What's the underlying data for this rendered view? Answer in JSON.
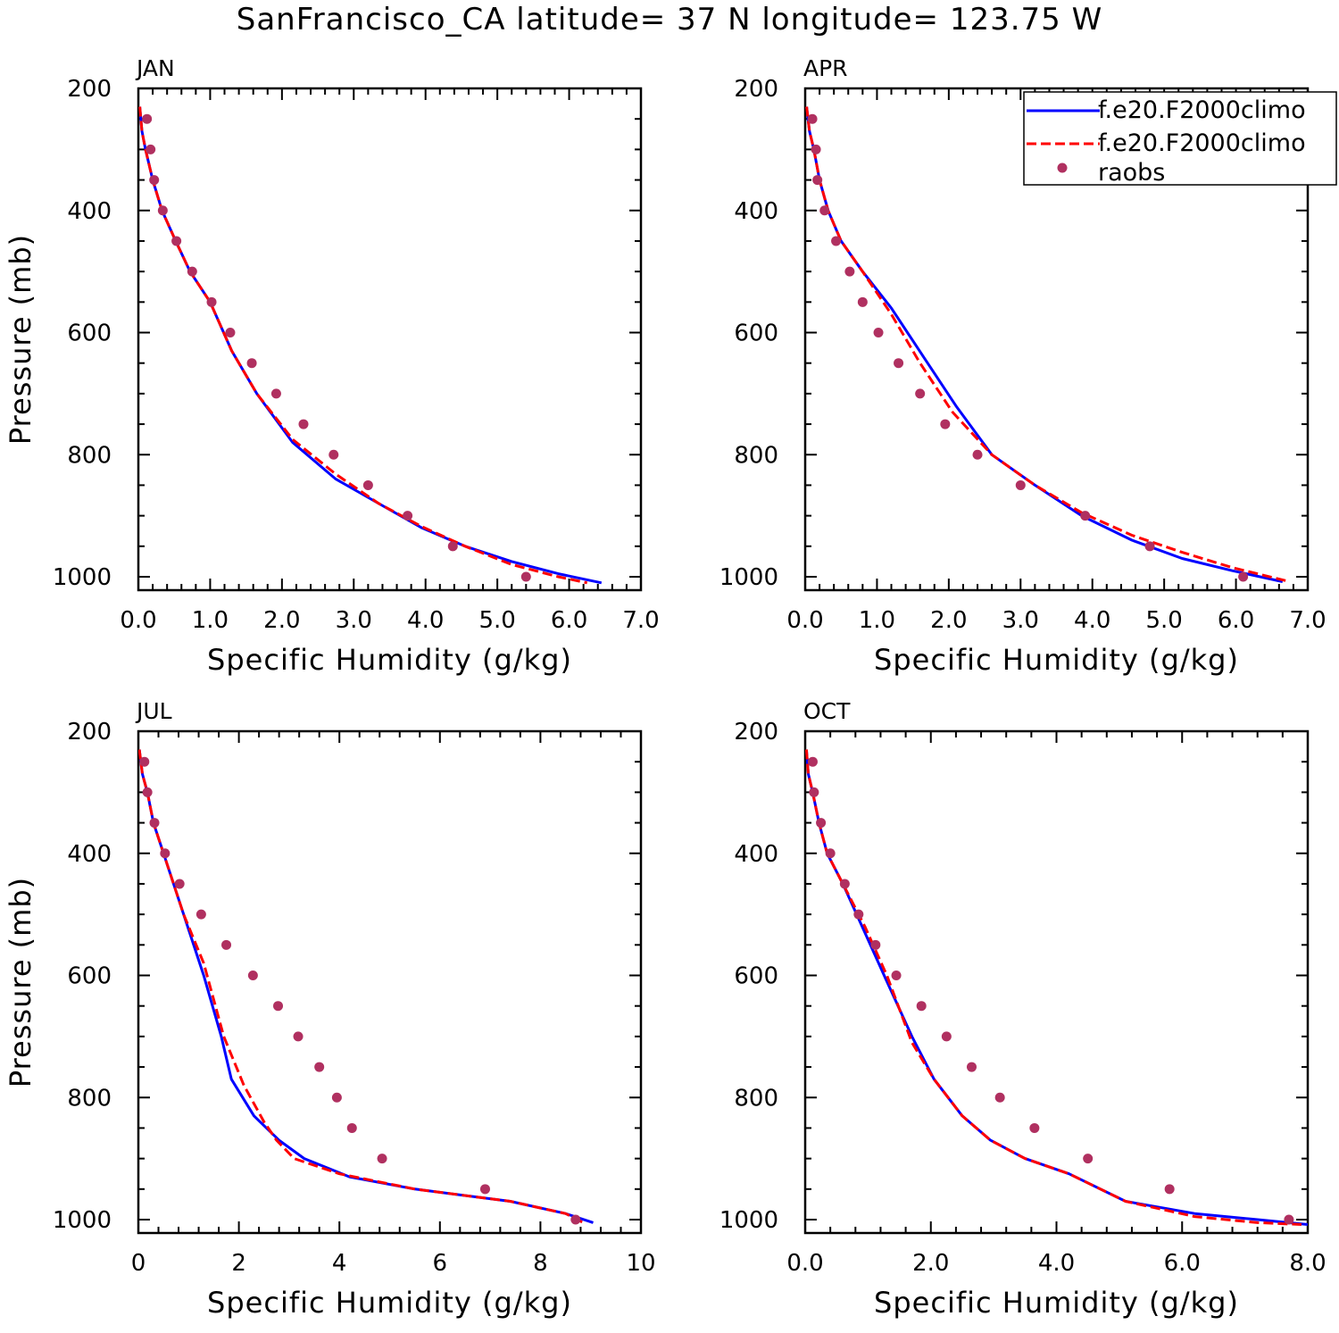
{
  "title": "SanFrancisco_CA  latitude= 37 N longitude= 123.75 W",
  "legend": {
    "placement": "top-right of APR panel",
    "entries": [
      {
        "label": "f.e20.F2000climo",
        "style": "solid",
        "color": "#0000ff"
      },
      {
        "label": "f.e20.F2000climo",
        "style": "dashed",
        "color": "#ff0000"
      },
      {
        "label": "raobs",
        "style": "marker",
        "color": "#b03060"
      }
    ]
  },
  "colors": {
    "model_solid": "#0000ff",
    "model_dashed": "#ff0000",
    "obs": "#b03060"
  },
  "chart_data": [
    {
      "type": "line",
      "panel_label": "JAN",
      "xlabel": "Specific Humidity (g/kg)",
      "ylabel": "Pressure (mb)",
      "xlim": [
        0,
        7
      ],
      "ylim": [
        1000,
        200
      ],
      "y_reversed": true,
      "xticks": [
        "0.0",
        "1.0",
        "2.0",
        "3.0",
        "4.0",
        "5.0",
        "6.0",
        "7.0"
      ],
      "yticks": [
        "200",
        "400",
        "600",
        "800",
        "1000"
      ],
      "series": [
        {
          "style": "solid",
          "color": "#0000ff",
          "x": [
            0.02,
            0.05,
            0.1,
            0.2,
            0.33,
            0.52,
            0.72,
            1.0,
            1.3,
            1.65,
            2.15,
            2.75,
            3.35,
            3.95,
            4.55,
            5.2,
            5.85,
            6.45
          ],
          "y": [
            230,
            270,
            300,
            350,
            400,
            450,
            500,
            550,
            630,
            700,
            780,
            840,
            880,
            920,
            950,
            975,
            995,
            1010
          ]
        },
        {
          "style": "dashed",
          "color": "#ff0000",
          "x": [
            0.02,
            0.05,
            0.1,
            0.2,
            0.33,
            0.52,
            0.72,
            1.0,
            1.3,
            1.65,
            2.15,
            2.75,
            3.35,
            3.95,
            4.55,
            5.2,
            5.85,
            6.25
          ],
          "y": [
            230,
            270,
            300,
            350,
            400,
            450,
            500,
            550,
            630,
            700,
            775,
            832,
            880,
            918,
            950,
            980,
            1000,
            1010
          ]
        },
        {
          "style": "marker",
          "color": "#b03060",
          "x": [
            0.12,
            0.17,
            0.22,
            0.34,
            0.53,
            0.75,
            1.02,
            1.28,
            1.58,
            1.92,
            2.3,
            2.72,
            3.2,
            3.75,
            4.38,
            5.4
          ],
          "y": [
            250,
            300,
            350,
            400,
            450,
            500,
            550,
            600,
            650,
            700,
            750,
            800,
            850,
            900,
            950,
            1000
          ]
        }
      ]
    },
    {
      "type": "line",
      "panel_label": "APR",
      "xlabel": "Specific Humidity (g/kg)",
      "ylabel": "",
      "xlim": [
        0,
        7
      ],
      "ylim": [
        1000,
        200
      ],
      "y_reversed": true,
      "xticks": [
        "0.0",
        "1.0",
        "2.0",
        "3.0",
        "4.0",
        "5.0",
        "6.0",
        "7.0"
      ],
      "yticks": [
        "200",
        "400",
        "600",
        "800",
        "1000"
      ],
      "series": [
        {
          "style": "solid",
          "color": "#0000ff",
          "x": [
            0.02,
            0.06,
            0.12,
            0.2,
            0.32,
            0.5,
            0.8,
            1.2,
            1.65,
            2.1,
            2.6,
            3.2,
            3.85,
            4.55,
            5.25,
            5.95,
            6.65
          ],
          "y": [
            230,
            270,
            300,
            350,
            400,
            450,
            500,
            560,
            640,
            720,
            800,
            850,
            900,
            940,
            970,
            990,
            1008
          ]
        },
        {
          "style": "dashed",
          "color": "#ff0000",
          "x": [
            0.02,
            0.06,
            0.12,
            0.2,
            0.32,
            0.5,
            0.8,
            1.2,
            1.6,
            2.05,
            2.6,
            3.2,
            3.85,
            4.55,
            5.25,
            5.95,
            6.75
          ],
          "y": [
            230,
            270,
            300,
            350,
            400,
            450,
            500,
            570,
            650,
            730,
            800,
            850,
            895,
            932,
            960,
            985,
            1008
          ]
        },
        {
          "style": "marker",
          "color": "#b03060",
          "x": [
            0.1,
            0.15,
            0.17,
            0.27,
            0.43,
            0.62,
            0.8,
            1.02,
            1.3,
            1.6,
            1.95,
            2.4,
            3.0,
            3.9,
            4.8,
            6.1
          ],
          "y": [
            250,
            300,
            350,
            400,
            450,
            500,
            550,
            600,
            650,
            700,
            750,
            800,
            850,
            900,
            950,
            1000
          ]
        }
      ]
    },
    {
      "type": "line",
      "panel_label": "JUL",
      "xlabel": "Specific Humidity (g/kg)",
      "ylabel": "Pressure (mb)",
      "xlim": [
        0,
        10
      ],
      "ylim": [
        1000,
        200
      ],
      "y_reversed": true,
      "xticks": [
        "0",
        "2",
        "4",
        "6",
        "8",
        "10"
      ],
      "yticks": [
        "200",
        "400",
        "600",
        "800",
        "1000"
      ],
      "series": [
        {
          "style": "solid",
          "color": "#0000ff",
          "x": [
            0.02,
            0.08,
            0.18,
            0.3,
            0.5,
            0.9,
            1.3,
            1.65,
            1.85,
            2.3,
            2.8,
            3.3,
            4.2,
            5.5,
            7.4,
            8.5,
            9.05
          ],
          "y": [
            230,
            270,
            300,
            350,
            400,
            500,
            600,
            700,
            770,
            830,
            870,
            900,
            930,
            950,
            970,
            990,
            1005
          ]
        },
        {
          "style": "dashed",
          "color": "#ff0000",
          "x": [
            0.02,
            0.08,
            0.18,
            0.3,
            0.5,
            0.9,
            1.3,
            1.7,
            2.1,
            2.5,
            2.75,
            3.1,
            4.0,
            5.5,
            7.4,
            8.5,
            8.85
          ],
          "y": [
            230,
            270,
            300,
            350,
            400,
            500,
            580,
            700,
            780,
            840,
            870,
            900,
            925,
            950,
            970,
            990,
            1005
          ]
        },
        {
          "style": "marker",
          "color": "#b03060",
          "x": [
            0.12,
            0.18,
            0.32,
            0.53,
            0.82,
            1.25,
            1.75,
            2.28,
            2.78,
            3.18,
            3.6,
            3.95,
            4.25,
            4.85,
            6.9,
            8.7
          ],
          "y": [
            250,
            300,
            350,
            400,
            450,
            500,
            550,
            600,
            650,
            700,
            750,
            800,
            850,
            900,
            950,
            1000
          ]
        }
      ]
    },
    {
      "type": "line",
      "panel_label": "OCT",
      "xlabel": "Specific Humidity (g/kg)",
      "ylabel": "",
      "xlim": [
        0,
        8
      ],
      "ylim": [
        1000,
        200
      ],
      "y_reversed": true,
      "xticks": [
        "0.0",
        "2.0",
        "4.0",
        "6.0",
        "8.0"
      ],
      "yticks": [
        "200",
        "400",
        "600",
        "800",
        "1000"
      ],
      "series": [
        {
          "style": "solid",
          "color": "#0000ff",
          "x": [
            0.02,
            0.05,
            0.12,
            0.22,
            0.35,
            0.6,
            0.95,
            1.3,
            1.7,
            2.05,
            2.5,
            2.95,
            3.5,
            4.2,
            5.1,
            6.2,
            7.2,
            8.0
          ],
          "y": [
            230,
            270,
            300,
            350,
            400,
            450,
            530,
            610,
            700,
            770,
            830,
            870,
            900,
            925,
            970,
            990,
            1000,
            1008
          ]
        },
        {
          "style": "dashed",
          "color": "#ff0000",
          "x": [
            0.02,
            0.05,
            0.12,
            0.22,
            0.35,
            0.6,
            0.95,
            1.3,
            1.7,
            2.05,
            2.5,
            2.95,
            3.5,
            4.2,
            5.1,
            6.2,
            7.2,
            7.9
          ],
          "y": [
            230,
            270,
            300,
            350,
            400,
            450,
            520,
            600,
            710,
            770,
            830,
            870,
            900,
            925,
            970,
            995,
            1005,
            1008
          ]
        },
        {
          "style": "marker",
          "color": "#b03060",
          "x": [
            0.12,
            0.14,
            0.25,
            0.4,
            0.63,
            0.85,
            1.12,
            1.45,
            1.85,
            2.25,
            2.65,
            3.1,
            3.65,
            4.5,
            5.8,
            7.7
          ],
          "y": [
            250,
            300,
            350,
            400,
            450,
            500,
            550,
            600,
            650,
            700,
            750,
            800,
            850,
            900,
            950,
            1000
          ]
        }
      ]
    }
  ]
}
